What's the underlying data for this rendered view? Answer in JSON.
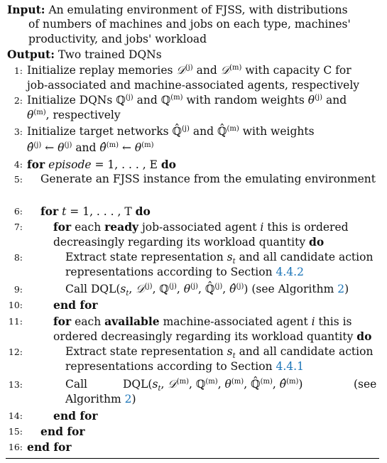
{
  "header": {
    "input_label": "Input:",
    "input_text": [
      "An emulating environment of FJSS, with distributions",
      "of numbers of machines and jobs on each type, machines'",
      "productivity, and jobs' workload"
    ],
    "output_label": "Output:",
    "output_text": "Two trained DQNs"
  },
  "sym": {
    "Dj": "𝒟",
    "sup_j": "(j)",
    "sup_m": "(m)",
    "Q": "ℚ",
    "theta": "θ",
    "Qhat": "ℚ̂",
    "thetahat": "θ̂",
    "larr": "←",
    "C": "C",
    "E": "E",
    "T": "T",
    "i": "i",
    "st": "s",
    "sub_t": "t",
    "t": "t"
  },
  "lines": [
    {
      "num": "1:",
      "a": "Initialize replay memories",
      "b": "and",
      "c": "with capacity",
      "d": "for",
      "e": "job-associated and machine-associated agents, respectively"
    },
    {
      "num": "2:",
      "a": "Initialize DQNs",
      "b": "and",
      "c": "with random weights",
      "d": "and",
      "e": ", respectively"
    },
    {
      "num": "3:",
      "a": "Initialize target networks",
      "b": "and",
      "c": "with weights",
      "d": "and"
    },
    {
      "num": "4:",
      "a": "for",
      "b": "episode",
      "c": "= 1, . . . ,",
      "d": "do"
    },
    {
      "num": "5:",
      "a": "Generate an FJSS instance from the emulating environment"
    },
    {
      "num": "6:",
      "a": "for",
      "b": "= 1, . . . ,",
      "c": "do"
    },
    {
      "num": "7:",
      "a": "for",
      "b": "each",
      "c": "ready",
      "d": "job-associated agent",
      "e": "this is ordered",
      "f": "decreasingly regarding its workload quantity",
      "g": "do"
    },
    {
      "num": "8:",
      "a": "Extract state representation",
      "b": "and all candidate action",
      "c": "representations according to Section",
      "ref": "4.4.2"
    },
    {
      "num": "9:",
      "a": "Call DQL(",
      "b": ") (see Algorithm",
      "ref": "2",
      "c": ")"
    },
    {
      "num": "10:",
      "a": "end for"
    },
    {
      "num": "11:",
      "a": "for",
      "b": "each",
      "c": "available",
      "d": "machine-associated agent",
      "e": "this is",
      "f": "ordered decreasingly regarding its workload quantity",
      "g": "do"
    },
    {
      "num": "12:",
      "a": "Extract state representation",
      "b": "and all candidate action",
      "c": "representations according to Section",
      "ref": "4.4.1"
    },
    {
      "num": "13:",
      "a": "Call",
      "b": "DQL(",
      "c": ")",
      "d": "(see",
      "e": "Algorithm",
      "ref": "2",
      "f": ")"
    },
    {
      "num": "14:",
      "a": "end for"
    },
    {
      "num": "15:",
      "a": "end for"
    },
    {
      "num": "16:",
      "a": "end for"
    }
  ]
}
